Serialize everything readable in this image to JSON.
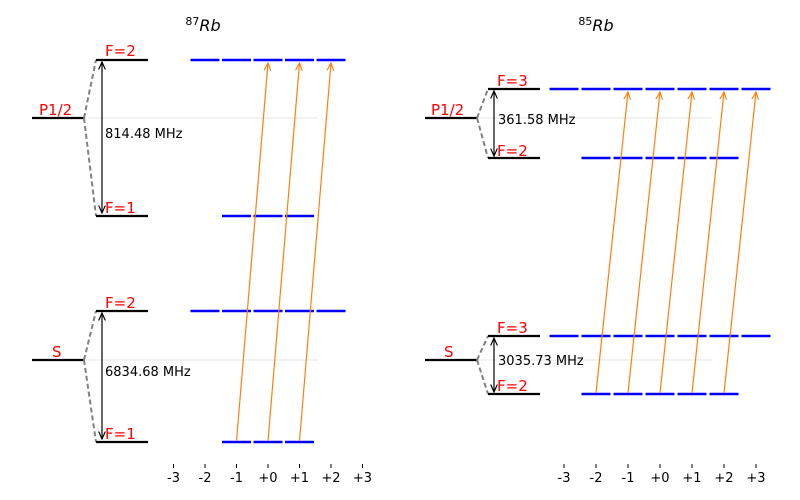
{
  "colors": {
    "level": "#000000",
    "sublevel": "#0000ff",
    "transition": "#ff7f0e",
    "label": "#ff0000",
    "split_dash": "#808080",
    "guide": "#e6e6e6"
  },
  "ticks": [
    "-3",
    "-2",
    "-1",
    "+0",
    "+1",
    "+2",
    "+3"
  ],
  "diagrams": [
    {
      "id": "rb87",
      "title": {
        "sup": "87",
        "main": "Rb"
      },
      "excited": {
        "label": "P1/2",
        "upper": {
          "label": "F=2",
          "m_values": [
            -2,
            -1,
            0,
            1,
            2
          ]
        },
        "lower": {
          "label": "F=1",
          "m_values": [
            -1,
            0,
            1
          ]
        },
        "splitting": "814.48 MHz"
      },
      "ground": {
        "label": "S",
        "upper": {
          "label": "F=2",
          "m_values": [
            -2,
            -1,
            0,
            1,
            2
          ]
        },
        "lower": {
          "label": "F=1",
          "m_values": [
            -1,
            0,
            1
          ]
        },
        "splitting": "6834.68 MHz"
      },
      "transitions": [
        {
          "from_m": -1,
          "to_m": 0
        },
        {
          "from_m": 0,
          "to_m": 1
        },
        {
          "from_m": 1,
          "to_m": 2
        }
      ]
    },
    {
      "id": "rb85",
      "title": {
        "sup": "85",
        "main": "Rb"
      },
      "excited": {
        "label": "P1/2",
        "upper": {
          "label": "F=3",
          "m_values": [
            -3,
            -2,
            -1,
            0,
            1,
            2,
            3
          ]
        },
        "lower": {
          "label": "F=2",
          "m_values": [
            -2,
            -1,
            0,
            1,
            2
          ]
        },
        "splitting": "361.58 MHz"
      },
      "ground": {
        "label": "S",
        "upper": {
          "label": "F=3",
          "m_values": [
            -3,
            -2,
            -1,
            0,
            1,
            2,
            3
          ]
        },
        "lower": {
          "label": "F=2",
          "m_values": [
            -2,
            -1,
            0,
            1,
            2
          ]
        },
        "splitting": "3035.73 MHz"
      },
      "transitions": [
        {
          "from_m": -2,
          "to_m": -1
        },
        {
          "from_m": -1,
          "to_m": 0
        },
        {
          "from_m": 0,
          "to_m": 1
        },
        {
          "from_m": 1,
          "to_m": 2
        },
        {
          "from_m": 2,
          "to_m": 3
        }
      ]
    }
  ]
}
